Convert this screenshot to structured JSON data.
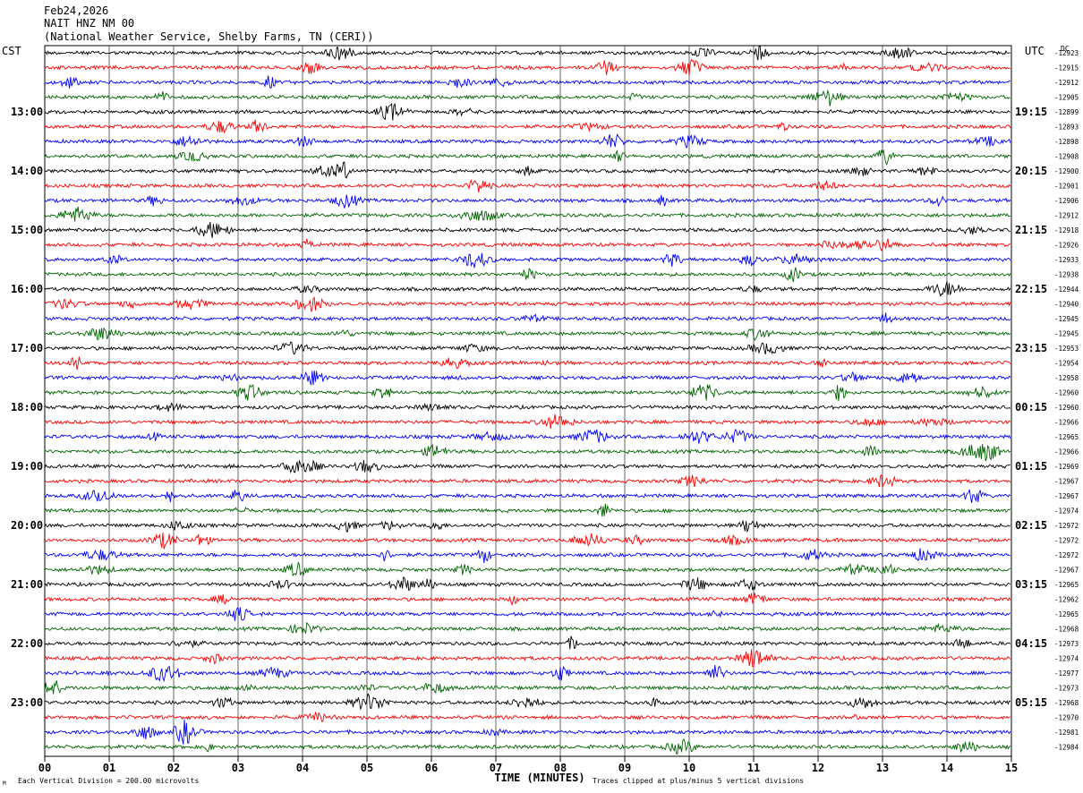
{
  "header": {
    "date": "Feb24,2026",
    "station": "NAIT HNZ NM 00",
    "agency": "(National Weather Service, Shelby Farms, TN (CERI))",
    "left_tz": "CST",
    "right_tz": "UTC",
    "dc_label": "DC"
  },
  "footer": {
    "xlabel": "TIME (MINUTES)",
    "scale_note": "Each Vertical Division =  200.00 microvolts",
    "clip_note": "Traces clipped at plus/minus 5 vertical divisions",
    "corner_mark": "M"
  },
  "colors": {
    "black": "#000000",
    "red": "#ff0000",
    "blue": "#0000ff",
    "green": "#006400",
    "grid": "#000000"
  },
  "chart_data": {
    "type": "line",
    "title": "NAIT HNZ NM 00",
    "xlabel": "TIME (MINUTES)",
    "x_ticks": [
      "00",
      "01",
      "02",
      "03",
      "04",
      "05",
      "06",
      "07",
      "08",
      "09",
      "10",
      "11",
      "12",
      "13",
      "14",
      "15"
    ],
    "xlim": [
      0,
      15
    ],
    "trace_color_cycle": [
      "black",
      "red",
      "blue",
      "green"
    ],
    "trace_count": 48,
    "left_time_labels": [
      {
        "trace": 4,
        "text": "13:00"
      },
      {
        "trace": 8,
        "text": "14:00"
      },
      {
        "trace": 12,
        "text": "15:00"
      },
      {
        "trace": 16,
        "text": "16:00"
      },
      {
        "trace": 20,
        "text": "17:00"
      },
      {
        "trace": 24,
        "text": "18:00"
      },
      {
        "trace": 28,
        "text": "19:00"
      },
      {
        "trace": 32,
        "text": "20:00"
      },
      {
        "trace": 36,
        "text": "21:00"
      },
      {
        "trace": 40,
        "text": "22:00"
      },
      {
        "trace": 44,
        "text": "23:00"
      }
    ],
    "right_time_labels": [
      {
        "trace": 4,
        "text": "19:15"
      },
      {
        "trace": 8,
        "text": "20:15"
      },
      {
        "trace": 12,
        "text": "21:15"
      },
      {
        "trace": 16,
        "text": "22:15"
      },
      {
        "trace": 20,
        "text": "23:15"
      },
      {
        "trace": 24,
        "text": "00:15"
      },
      {
        "trace": 28,
        "text": "01:15"
      },
      {
        "trace": 32,
        "text": "02:15"
      },
      {
        "trace": 36,
        "text": "03:15"
      },
      {
        "trace": 40,
        "text": "04:15"
      },
      {
        "trace": 44,
        "text": "05:15"
      }
    ],
    "dc_offsets": [
      "-12923",
      "-12915",
      "-12912",
      "-12905",
      "-12899",
      "-12893",
      "-12898",
      "-12908",
      "-12900",
      "-12901",
      "-12906",
      "-12912",
      "-12918",
      "-12926",
      "-12933",
      "-12938",
      "-12944",
      "-12940",
      "-12945",
      "-12945",
      "-12953",
      "-12954",
      "-12958",
      "-12960",
      "-12960",
      "-12966",
      "-12965",
      "-12966",
      "-12969",
      "-12967",
      "-12967",
      "-12974",
      "-12972",
      "-12972",
      "-12972",
      "-12967",
      "-12965",
      "-12962",
      "-12965",
      "-12968",
      "-12973",
      "-12974",
      "-12977",
      "-12973",
      "-12968",
      "-12970",
      "-12981",
      "-12984"
    ]
  }
}
